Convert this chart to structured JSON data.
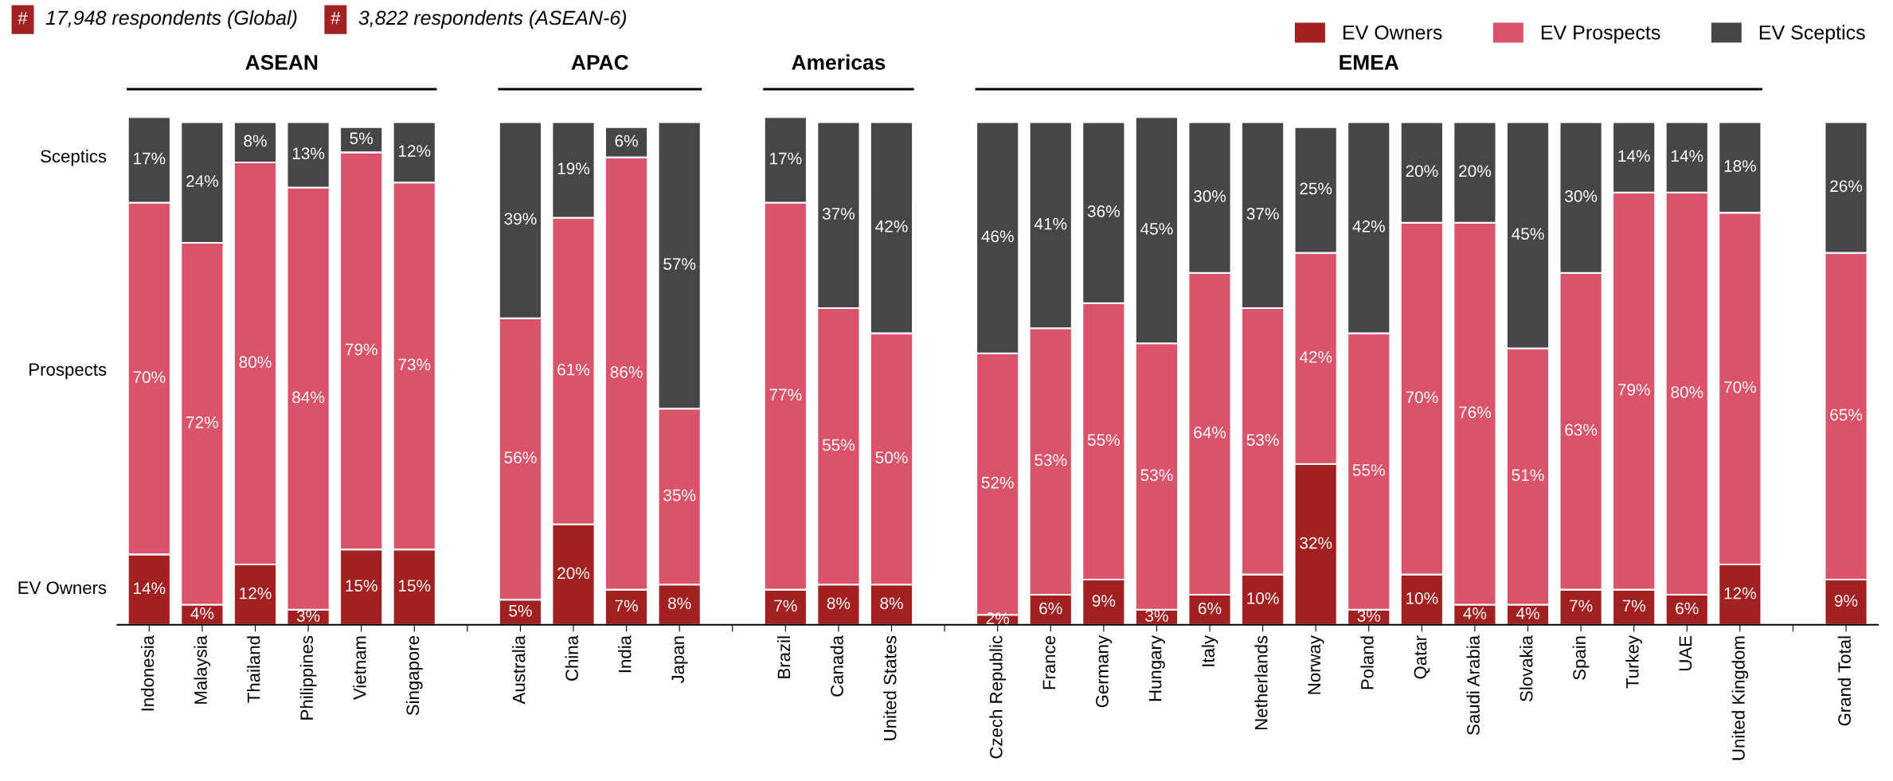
{
  "chart_data": {
    "type": "bar",
    "stacked": true,
    "legend": "top right",
    "grid": false,
    "categories": [
      "Indonesia",
      "Malaysia",
      "Thailand",
      "Philippines",
      "Vietnam",
      "Singapore",
      null,
      "Australia",
      "China",
      "India",
      "Japan",
      null,
      "Brazil",
      "Canada",
      "United States",
      null,
      "Czech Republic",
      "France",
      "Germany",
      "Hungary",
      "Italy",
      "Netherlands",
      "Norway",
      "Poland",
      "Qatar",
      "Saudi Arabia",
      "Slovakia",
      "Spain",
      "Turkey",
      "UAE",
      "United Kingdom",
      null,
      "Grand Total"
    ],
    "ylim": [
      0,
      101
    ],
    "series": [
      {
        "name": "EV Owners",
        "color": "#a32020",
        "values": [
          14,
          4,
          12,
          3,
          15,
          15,
          null,
          5,
          20,
          7,
          8,
          null,
          7,
          8,
          8,
          null,
          2,
          6,
          9,
          3,
          6,
          10,
          32,
          3,
          10,
          4,
          4,
          7,
          7,
          6,
          12,
          null,
          9
        ],
        "value_labels": [
          "14%",
          "4%",
          "12%",
          "3%",
          "15%",
          "15%",
          null,
          "5%",
          "20%",
          "7%",
          "8%",
          null,
          "7%",
          "8%",
          "8%",
          null,
          "2%",
          "6%",
          "9%",
          "3%",
          "6%",
          "10%",
          "32%",
          "3%",
          "10%",
          "4%",
          "4%",
          "7%",
          "7%",
          "6%",
          "12%",
          null,
          "9%"
        ]
      },
      {
        "name": "EV Prospects",
        "color": "#db536a",
        "values": [
          70,
          72,
          80,
          84,
          79,
          73,
          null,
          56,
          61,
          86,
          35,
          null,
          77,
          55,
          50,
          null,
          52,
          53,
          55,
          53,
          64,
          53,
          42,
          55,
          70,
          76,
          51,
          63,
          79,
          80,
          70,
          null,
          65
        ],
        "value_labels": [
          "70%",
          "72%",
          "80%",
          "84%",
          "79%",
          "73%",
          null,
          "56%",
          "61%",
          "86%",
          "35%",
          null,
          "77%",
          "55%",
          "50%",
          null,
          "52%",
          "53%",
          "55%",
          "53%",
          "64%",
          "53%",
          "42%",
          "55%",
          "70%",
          "76%",
          "51%",
          "63%",
          "79%",
          "80%",
          "70%",
          null,
          "65%"
        ]
      },
      {
        "name": "EV Sceptics",
        "color": "#464646",
        "values": [
          17,
          24,
          8,
          13,
          5,
          12,
          null,
          39,
          19,
          6,
          57,
          null,
          17,
          37,
          42,
          null,
          46,
          41,
          36,
          45,
          30,
          37,
          25,
          42,
          20,
          20,
          45,
          30,
          14,
          14,
          18,
          null,
          26
        ],
        "value_labels": [
          "17%",
          "24%",
          "8%",
          "13%",
          "5%",
          "12%",
          null,
          "39%",
          "19%",
          "6%",
          "57%",
          null,
          "17%",
          "37%",
          "42%",
          null,
          "46%",
          "41%",
          "36%",
          "45%",
          "30%",
          "37%",
          "25%",
          "42%",
          "20%",
          "20%",
          "45%",
          "30%",
          "14%",
          "14%",
          "18%",
          null,
          "26%"
        ]
      }
    ],
    "annotations": [
      "#",
      "17,948 respondents (Global)",
      "#",
      "3,822 respondents (ASEAN-6)",
      "ASEAN",
      "APAC",
      "Americas",
      "EMEA",
      "Sceptics",
      "Prospects",
      "EV Owners"
    ]
  }
}
